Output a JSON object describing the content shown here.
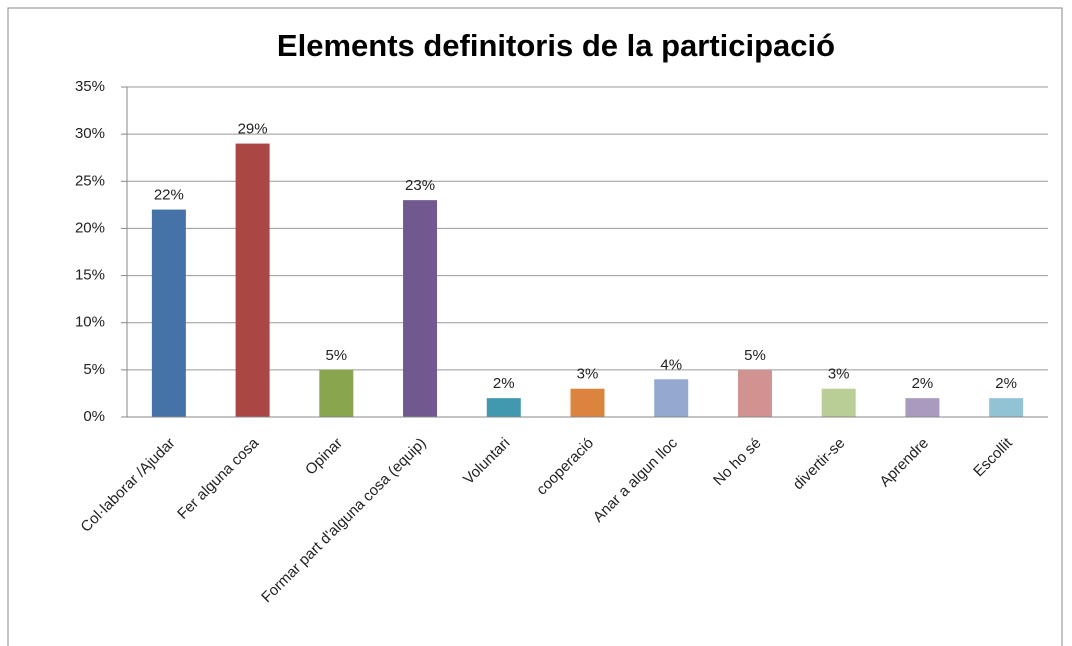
{
  "chart_data": {
    "type": "bar",
    "title": "Elements definitoris de la participació",
    "categories": [
      "Col·laborar /Ajudar",
      "Fer alguna cosa",
      "Opinar",
      "Formar part d'alguna cosa (equip)",
      "Voluntari",
      "cooperació",
      "Anar a algun lloc",
      "No ho sé",
      "divertir-se",
      "Aprendre",
      "Escollit"
    ],
    "values": [
      22,
      29,
      5,
      23,
      2,
      3,
      4,
      5,
      3,
      2,
      2
    ],
    "value_labels": [
      "22%",
      "29%",
      "5%",
      "23%",
      "2%",
      "3%",
      "4%",
      "5%",
      "3%",
      "2%",
      "2%"
    ],
    "colors": [
      "#4572a7",
      "#aa4643",
      "#89a54e",
      "#71588f",
      "#4198af",
      "#db843d",
      "#93a9cf",
      "#d19392",
      "#b9cd96",
      "#a99bbd",
      "#92c3d5"
    ],
    "ylim": [
      0,
      35
    ],
    "yticks": [
      {
        "value": 0,
        "label": "0%"
      },
      {
        "value": 5,
        "label": "5%"
      },
      {
        "value": 10,
        "label": "10%"
      },
      {
        "value": 15,
        "label": "15%"
      },
      {
        "value": 20,
        "label": "20%"
      },
      {
        "value": 25,
        "label": "25%"
      },
      {
        "value": 30,
        "label": "30%"
      },
      {
        "value": 35,
        "label": "35%"
      }
    ],
    "grid": true
  }
}
